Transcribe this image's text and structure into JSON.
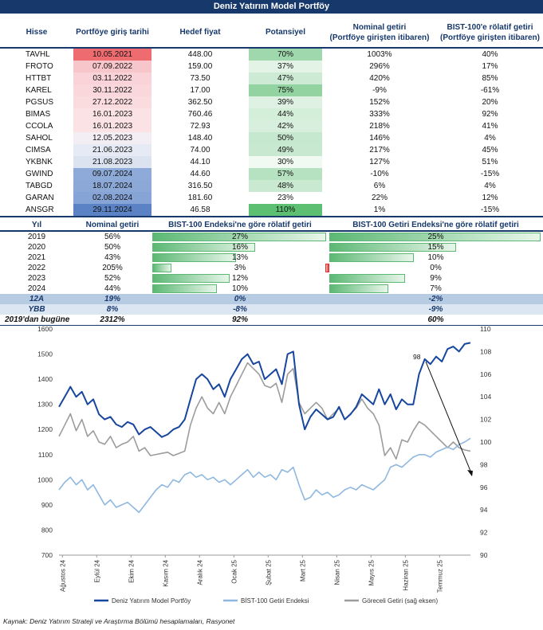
{
  "title": "Deniz Yatırım Model Portföy",
  "table1": {
    "headers": [
      "Hisse",
      "Portföye giriş tarihi",
      "Hedef fiyat",
      "Potansiyel",
      "Nominal getiri\n(Portföye girişten itibaren)",
      "BIST-100'e rölatif getiri\n(Portföye girişten itibaren)"
    ],
    "rows": [
      {
        "stock": "TAVHL",
        "date": "10.05.2021",
        "target": "448.00",
        "potential": "70%",
        "nominal": "1003%",
        "relative": "40%",
        "date_color": "#ee6b6f",
        "pot_color": "#9fd8ac"
      },
      {
        "stock": "FROTO",
        "date": "07.09.2022",
        "target": "159.00",
        "potential": "37%",
        "nominal": "296%",
        "relative": "17%",
        "date_color": "#f7c6ca",
        "pot_color": "#e3f3e6"
      },
      {
        "stock": "HTTBT",
        "date": "03.11.2022",
        "target": "73.50",
        "potential": "47%",
        "nominal": "420%",
        "relative": "85%",
        "date_color": "#f9d3d7",
        "pot_color": "#cdebd4"
      },
      {
        "stock": "KAREL",
        "date": "30.11.2022",
        "target": "17.00",
        "potential": "75%",
        "nominal": "-9%",
        "relative": "-61%",
        "date_color": "#f9d7da",
        "pot_color": "#92d3a1"
      },
      {
        "stock": "PGSUS",
        "date": "27.12.2022",
        "target": "362.50",
        "potential": "39%",
        "nominal": "152%",
        "relative": "20%",
        "date_color": "#fadcdf",
        "pot_color": "#dff1e3"
      },
      {
        "stock": "BIMAS",
        "date": "16.01.2023",
        "target": "760.46",
        "potential": "44%",
        "nominal": "333%",
        "relative": "92%",
        "date_color": "#fbe2e4",
        "pot_color": "#d3eed9"
      },
      {
        "stock": "CCOLA",
        "date": "16.01.2023",
        "target": "72.93",
        "potential": "42%",
        "nominal": "218%",
        "relative": "41%",
        "date_color": "#fbe2e4",
        "pot_color": "#d8efdd"
      },
      {
        "stock": "SAHOL",
        "date": "12.05.2023",
        "target": "148.40",
        "potential": "50%",
        "nominal": "146%",
        "relative": "4%",
        "date_color": "#f3eef4",
        "pot_color": "#c6e8ce"
      },
      {
        "stock": "CIMSA",
        "date": "21.06.2023",
        "target": "74.00",
        "potential": "49%",
        "nominal": "217%",
        "relative": "45%",
        "date_color": "#e6eaf4",
        "pot_color": "#c8e9d0"
      },
      {
        "stock": "YKBNK",
        "date": "21.08.2023",
        "target": "44.10",
        "potential": "30%",
        "nominal": "127%",
        "relative": "51%",
        "date_color": "#dbe3f1",
        "pot_color": "#f0f9f2"
      },
      {
        "stock": "GWIND",
        "date": "09.07.2024",
        "target": "44.60",
        "potential": "57%",
        "nominal": "-10%",
        "relative": "-15%",
        "date_color": "#8eaad8",
        "pot_color": "#b6e2c1"
      },
      {
        "stock": "TABGD",
        "date": "18.07.2024",
        "target": "316.50",
        "potential": "48%",
        "nominal": "6%",
        "relative": "4%",
        "date_color": "#8ba8d7",
        "pot_color": "#cae9d1"
      },
      {
        "stock": "GARAN",
        "date": "02.08.2024",
        "target": "181.60",
        "potential": "23%",
        "nominal": "22%",
        "relative": "12%",
        "date_color": "#86a4d5",
        "pot_color": "#ffffff"
      },
      {
        "stock": "ANSGR",
        "date": "29.11.2024",
        "target": "46.58",
        "potential": "110%",
        "nominal": "1%",
        "relative": "-15%",
        "date_color": "#5b82c4",
        "pot_color": "#5cbf72"
      }
    ]
  },
  "table2": {
    "headers": [
      "Yıl",
      "Nominal getiri",
      "BIST-100 Endeksi'ne göre rölatif getiri",
      "BIST-100 Getiri Endeksi'ne göre rölatif getiri"
    ],
    "rows": [
      {
        "year": "2019",
        "nominal": "56%",
        "rel1": "27%",
        "rel2": "25%",
        "v1": 27,
        "v2": 25
      },
      {
        "year": "2020",
        "nominal": "50%",
        "rel1": "16%",
        "rel2": "15%",
        "v1": 16,
        "v2": 15
      },
      {
        "year": "2021",
        "nominal": "43%",
        "rel1": "13%",
        "rel2": "10%",
        "v1": 13,
        "v2": 10
      },
      {
        "year": "2022",
        "nominal": "205%",
        "rel1": "3%",
        "rel2": "0%",
        "v1": 3,
        "v2": -0.3
      },
      {
        "year": "2023",
        "nominal": "52%",
        "rel1": "12%",
        "rel2": "9%",
        "v1": 12,
        "v2": 9
      },
      {
        "year": "2024",
        "nominal": "44%",
        "rel1": "10%",
        "rel2": "7%",
        "v1": 10,
        "v2": 7
      }
    ],
    "summary": [
      {
        "label": "12A",
        "nominal": "19%",
        "rel1": "0%",
        "rel2": "-2%"
      },
      {
        "label": "YBB",
        "nominal": "8%",
        "rel1": "-8%",
        "rel2": "-9%"
      },
      {
        "label": "2019'dan bugüne",
        "nominal": "2312%",
        "rel1": "92%",
        "rel2": "60%"
      }
    ]
  },
  "chart_data": {
    "type": "line",
    "x_ticks": [
      "Ağustos 24",
      "Eylül 24",
      "Ekim 24",
      "Kasım 24",
      "Aralık 24",
      "Ocak 25",
      "Şubat 25",
      "Mart 25",
      "Nisan 25",
      "Mayıs 25",
      "Haziran 25",
      "Temmuz 25"
    ],
    "y_left": {
      "min": 700,
      "max": 1600,
      "ticks": [
        700,
        800,
        900,
        1000,
        1100,
        1200,
        1300,
        1400,
        1500,
        1600
      ]
    },
    "y_right": {
      "min": 90,
      "max": 110,
      "ticks": [
        90,
        92,
        94,
        96,
        98,
        100,
        102,
        104,
        106,
        108,
        110
      ]
    },
    "annotation": "98",
    "series": [
      {
        "name": "Deniz Yatırım Model Portföy",
        "axis": "left",
        "color": "#17469e",
        "values": [
          1290,
          1330,
          1370,
          1330,
          1350,
          1300,
          1320,
          1260,
          1240,
          1250,
          1220,
          1210,
          1230,
          1220,
          1180,
          1200,
          1210,
          1190,
          1170,
          1180,
          1200,
          1210,
          1240,
          1320,
          1400,
          1420,
          1400,
          1360,
          1380,
          1330,
          1400,
          1440,
          1480,
          1500,
          1460,
          1470,
          1400,
          1420,
          1440,
          1380,
          1500,
          1510,
          1300,
          1200,
          1250,
          1280,
          1260,
          1240,
          1250,
          1290,
          1240,
          1260,
          1290,
          1340,
          1320,
          1300,
          1360,
          1300,
          1340,
          1280,
          1320,
          1300,
          1300,
          1420,
          1480,
          1460,
          1490,
          1470,
          1520,
          1530,
          1510,
          1540,
          1545
        ]
      },
      {
        "name": "BİST-100 Getiri Endeksi",
        "axis": "left",
        "color": "#8fb8e0",
        "values": [
          960,
          990,
          1010,
          980,
          1000,
          960,
          980,
          940,
          900,
          920,
          890,
          900,
          910,
          890,
          870,
          900,
          930,
          960,
          980,
          970,
          1000,
          990,
          1020,
          1030,
          1010,
          1020,
          1000,
          1010,
          990,
          1000,
          980,
          1000,
          1020,
          1040,
          1010,
          1030,
          1010,
          1020,
          1000,
          1040,
          1030,
          1050,
          980,
          920,
          930,
          960,
          940,
          950,
          930,
          940,
          960,
          970,
          960,
          980,
          970,
          960,
          980,
          1000,
          1050,
          1060,
          1050,
          1070,
          1090,
          1100,
          1100,
          1090,
          1110,
          1120,
          1130,
          1120,
          1140,
          1150,
          1165
        ]
      },
      {
        "name": "Göreceli Getiri (sağ eksen)",
        "axis": "right",
        "color": "#9c9c9c",
        "values": [
          100.5,
          101.5,
          102.5,
          101,
          102,
          100.5,
          101,
          100,
          99.8,
          100.5,
          99.5,
          99.8,
          100,
          100.5,
          99.2,
          99.5,
          98.8,
          98.9,
          99,
          99.1,
          98.8,
          99,
          99.2,
          101.5,
          103,
          104,
          103,
          102.5,
          103.5,
          102.5,
          104,
          105,
          106,
          107,
          106.5,
          106,
          105,
          104.8,
          105.2,
          103.5,
          106,
          106.5,
          103.5,
          102.5,
          103,
          103.5,
          103,
          102,
          102.5,
          103,
          102,
          102.5,
          103,
          103.8,
          103,
          102.5,
          101.5,
          98.8,
          99.5,
          98.5,
          100.2,
          100,
          101,
          101.8,
          101.5,
          101,
          100.5,
          100,
          99.5,
          100,
          99.5,
          99.3,
          99.2
        ]
      }
    ]
  },
  "source": "Kaynak: Deniz Yatırım Strateji ve Araştırma Bölümü hesaplamaları, Rasyonet"
}
